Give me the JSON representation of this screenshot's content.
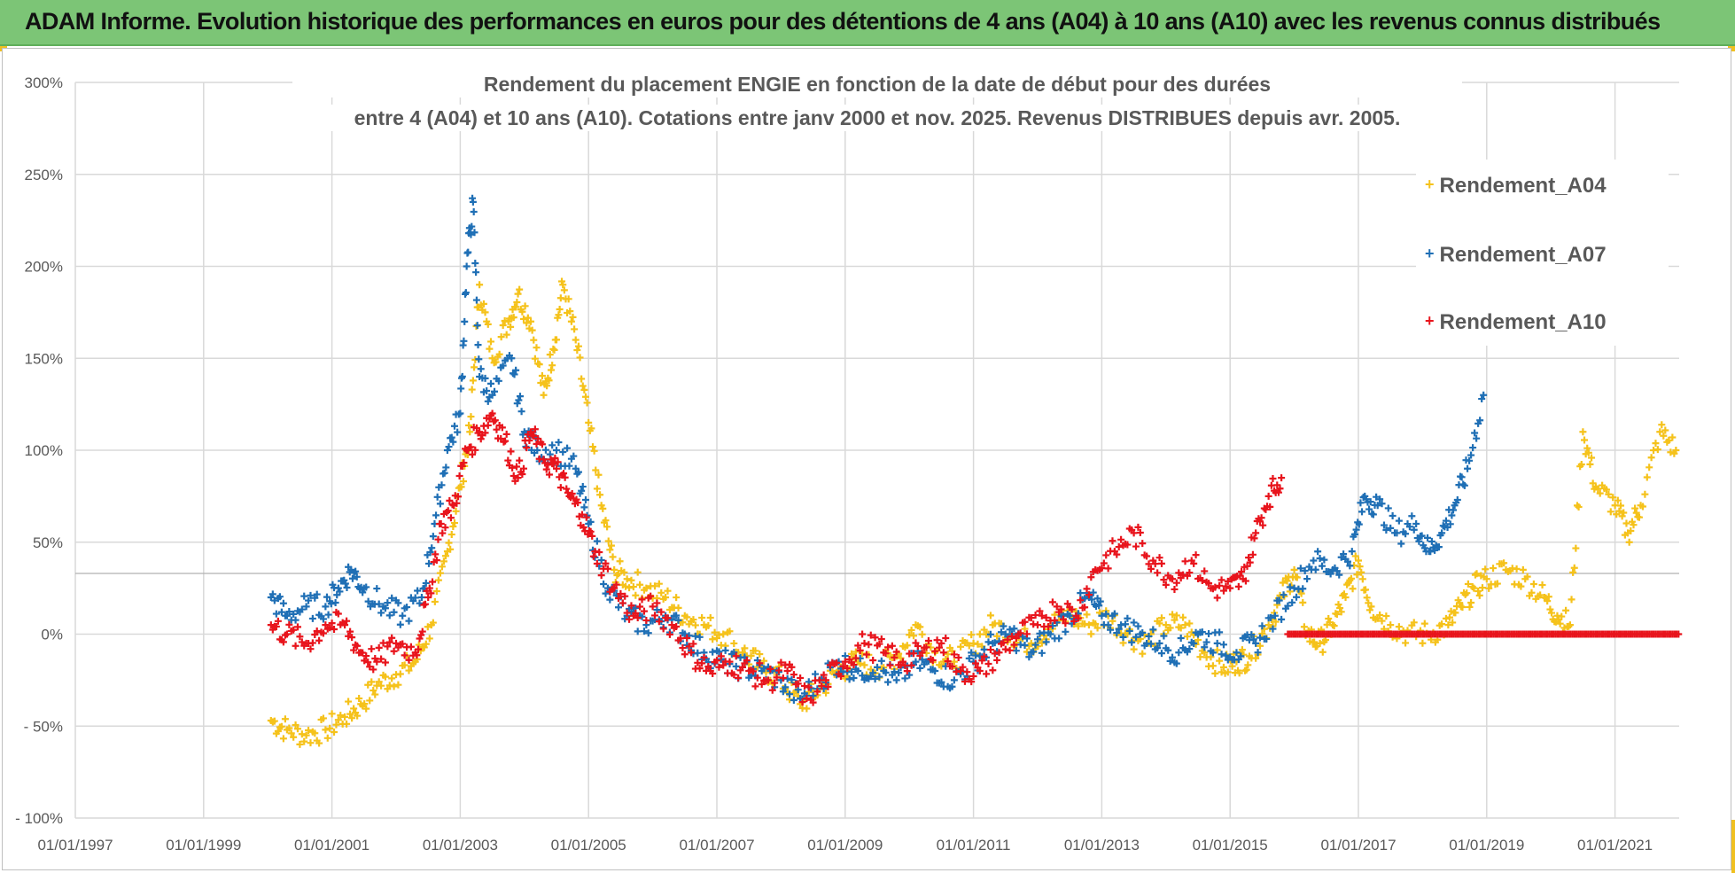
{
  "header": {
    "title": "ADAM Informe. Evolution historique des performances en euros pour des détentions de 4 ans (A04) à 10 ans (A10) avec les revenus connus distribués"
  },
  "colors": {
    "banner": "#7cc576",
    "A04": "#f5c21b",
    "A07": "#1f6fb5",
    "A10": "#e8141c",
    "grid": "#d9d9d9",
    "axis_text": "#595959"
  },
  "chart_data": {
    "type": "scatter",
    "title_line1": "Rendement du placement ENGIE en fonction de la date de début pour des durées",
    "title_line2": "entre 4 (A04) et 10 ans (A10). Cotations entre janv 2000 et nov. 2025. Revenus DISTRIBUES depuis avr. 2005.",
    "xlabel": "",
    "ylabel": "",
    "x_range": [
      1997.0,
      2022.0
    ],
    "ylim": [
      -100,
      300
    ],
    "x_ticks": [
      1997,
      1999,
      2001,
      2003,
      2005,
      2007,
      2009,
      2011,
      2013,
      2015,
      2017,
      2019,
      2021
    ],
    "x_tick_labels": [
      "01/01/1997",
      "01/01/1999",
      "01/01/2001",
      "01/01/2003",
      "01/01/2005",
      "01/01/2007",
      "01/01/2009",
      "01/01/2011",
      "01/01/2013",
      "01/01/2015",
      "01/01/2017",
      "01/01/2019",
      "01/01/2021"
    ],
    "y_ticks": [
      -100,
      -50,
      0,
      50,
      100,
      150,
      200,
      250,
      300
    ],
    "y_tick_labels": [
      "- 100%",
      "- 50%",
      "0%",
      "50%",
      "100%",
      "150%",
      "200%",
      "250%",
      "300%"
    ],
    "grid": true,
    "legend_position": "top-right",
    "series": [
      {
        "name": "Rendement_A04",
        "color": "#f5c21b",
        "x": [
          2000.05,
          2000.3,
          2000.6,
          2000.9,
          2001.2,
          2001.45,
          2001.7,
          2002.0,
          2002.3,
          2002.55,
          2002.8,
          2003.0,
          2003.15,
          2003.3,
          2003.5,
          2003.75,
          2003.9,
          2004.1,
          2004.3,
          2004.45,
          2004.6,
          2004.8,
          2005.0,
          2005.2,
          2005.4,
          2005.6,
          2005.9,
          2006.2,
          2006.5,
          2006.8,
          2007.1,
          2007.4,
          2007.7,
          2008.0,
          2008.3,
          2008.6,
          2008.9,
          2009.2,
          2009.5,
          2009.8,
          2010.1,
          2010.4,
          2010.7,
          2011.0,
          2011.3,
          2011.6,
          2011.9,
          2012.2,
          2012.5,
          2012.8,
          2013.1,
          2013.4,
          2013.7,
          2014.0,
          2014.3,
          2014.6,
          2014.9,
          2015.1,
          2015.3,
          2015.6,
          2015.8,
          2016.0,
          2016.2,
          2016.4,
          2016.6,
          2016.8,
          2017.0,
          2017.2,
          2017.5,
          2017.8,
          2018.1,
          2018.4,
          2018.6,
          2018.8,
          2019.0,
          2019.3,
          2019.6,
          2019.9,
          2020.1,
          2020.3,
          2020.5,
          2020.7,
          2021.0,
          2021.2,
          2021.4,
          2021.7,
          2021.95
        ],
        "y": [
          -47,
          -52,
          -55,
          -52,
          -45,
          -38,
          -28,
          -22,
          -15,
          5,
          45,
          80,
          110,
          190,
          150,
          170,
          185,
          170,
          130,
          155,
          190,
          160,
          115,
          70,
          35,
          30,
          25,
          20,
          10,
          5,
          0,
          -10,
          -18,
          -25,
          -38,
          -30,
          -20,
          -15,
          -18,
          -12,
          5,
          -10,
          -15,
          -5,
          5,
          0,
          -5,
          5,
          10,
          5,
          10,
          0,
          -5,
          5,
          5,
          -10,
          -18,
          -15,
          -12,
          5,
          20,
          35,
          0,
          -5,
          5,
          20,
          40,
          15,
          5,
          0,
          0,
          5,
          15,
          25,
          30,
          35,
          30,
          20,
          10,
          5,
          110,
          80,
          70,
          55,
          70,
          110,
          100
        ]
      },
      {
        "name": "Rendement_A07",
        "color": "#1f6fb5",
        "x": [
          2000.05,
          2000.3,
          2000.6,
          2000.9,
          2001.1,
          2001.3,
          2001.5,
          2001.8,
          2002.1,
          2002.4,
          2002.6,
          2002.8,
          2003.0,
          2003.1,
          2003.2,
          2003.3,
          2003.5,
          2003.8,
          2004.0,
          2004.2,
          2004.5,
          2004.8,
          2005.0,
          2005.3,
          2005.6,
          2005.9,
          2006.2,
          2006.5,
          2006.8,
          2007.1,
          2007.4,
          2007.7,
          2008.0,
          2008.3,
          2008.6,
          2008.9,
          2009.2,
          2009.5,
          2009.8,
          2010.1,
          2010.4,
          2010.7,
          2011.0,
          2011.3,
          2011.6,
          2011.9,
          2012.2,
          2012.5,
          2012.8,
          2013.0,
          2013.3,
          2013.6,
          2013.9,
          2014.2,
          2014.5,
          2014.8,
          2015.1,
          2015.4,
          2015.7,
          2016.0,
          2016.3,
          2016.6,
          2016.9,
          2017.1,
          2017.3,
          2017.6,
          2017.9,
          2018.1,
          2018.3,
          2018.5,
          2018.7,
          2018.95
        ],
        "y": [
          20,
          10,
          15,
          15,
          25,
          35,
          25,
          15,
          10,
          20,
          60,
          100,
          120,
          200,
          235,
          140,
          130,
          150,
          110,
          100,
          100,
          90,
          60,
          25,
          10,
          5,
          10,
          0,
          -10,
          -15,
          -18,
          -20,
          -25,
          -35,
          -25,
          -15,
          -20,
          -18,
          -25,
          -15,
          -20,
          -25,
          -15,
          -5,
          0,
          -10,
          0,
          10,
          20,
          10,
          5,
          0,
          -5,
          -10,
          0,
          -5,
          -10,
          -5,
          10,
          25,
          40,
          35,
          45,
          75,
          70,
          55,
          60,
          45,
          55,
          70,
          90,
          130
        ]
      },
      {
        "name": "Rendement_A10",
        "color": "#e8141c",
        "x": [
          2000.05,
          2000.3,
          2000.6,
          2000.9,
          2001.2,
          2001.45,
          2001.7,
          2002.0,
          2002.3,
          2002.5,
          2002.7,
          2002.9,
          2003.1,
          2003.3,
          2003.5,
          2003.7,
          2003.9,
          2004.1,
          2004.3,
          2004.5,
          2004.7,
          2004.9,
          2005.1,
          2005.4,
          2005.7,
          2006.0,
          2006.3,
          2006.6,
          2006.9,
          2007.2,
          2007.5,
          2007.8,
          2008.1,
          2008.4,
          2008.7,
          2009.0,
          2009.3,
          2009.6,
          2009.9,
          2010.2,
          2010.5,
          2010.8,
          2011.1,
          2011.4,
          2011.7,
          2012.0,
          2012.3,
          2012.6,
          2012.9,
          2013.2,
          2013.5,
          2013.8,
          2014.1,
          2014.4,
          2014.7,
          2015.0,
          2015.2,
          2015.4,
          2015.6,
          2015.8
        ],
        "y": [
          5,
          0,
          -5,
          5,
          5,
          -10,
          -15,
          -5,
          -10,
          20,
          60,
          70,
          100,
          110,
          120,
          105,
          85,
          110,
          95,
          90,
          75,
          65,
          45,
          25,
          10,
          15,
          5,
          -10,
          -20,
          -15,
          -20,
          -25,
          -20,
          -35,
          -25,
          -15,
          -5,
          -10,
          -15,
          -10,
          -5,
          -20,
          -20,
          -10,
          0,
          5,
          15,
          10,
          35,
          45,
          55,
          40,
          30,
          40,
          25,
          25,
          30,
          55,
          75,
          85
        ]
      }
    ],
    "flat_segment": {
      "series": "Rendement_A10",
      "x_start": 2015.9,
      "x_end": 2022.0,
      "value": 0
    },
    "legend": [
      "Rendement_A04",
      "Rendement_A07",
      "Rendement_A10"
    ]
  }
}
